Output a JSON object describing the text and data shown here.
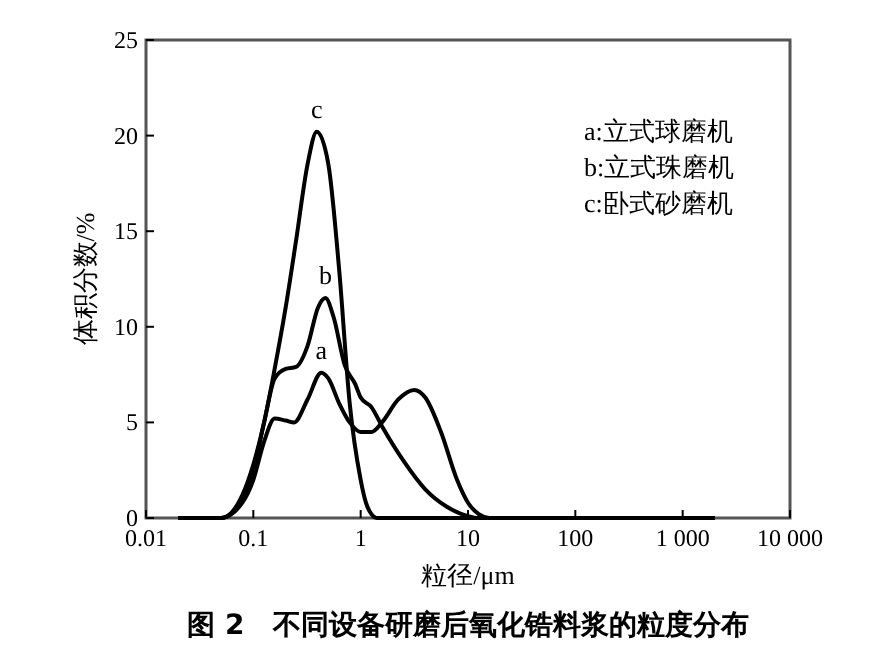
{
  "chart_data": {
    "type": "line",
    "title": "图 2　不同设备研磨后氧化锆料浆的粒度分布",
    "xlabel": "粒径/μm",
    "ylabel": "体积分数/%",
    "log": "x",
    "xlim": [
      0.01,
      10000
    ],
    "ylim": [
      0,
      25
    ],
    "xticks": [
      0.01,
      0.1,
      1,
      10,
      100,
      {
        "value": 1000,
        "label": "1 000"
      },
      {
        "value": 10000,
        "label": "10 000"
      }
    ],
    "yticks": [
      0,
      5,
      10,
      15,
      20,
      25
    ],
    "grid": false,
    "legend": false,
    "marker": "none",
    "line_style": "solid",
    "series": [
      {
        "name": "a",
        "color": "#000000",
        "x": [
          0.02,
          0.05,
          0.079,
          0.1,
          0.126,
          0.158,
          0.2,
          0.24,
          0.32,
          0.43,
          0.5,
          0.63,
          0.79,
          1,
          1.26,
          1.58,
          2.24,
          3.16,
          4,
          5.6,
          7.9,
          10,
          12.6,
          15.8,
          20,
          2000
        ],
        "values": [
          0,
          0,
          0.8,
          2,
          4,
          5.2,
          5.1,
          5,
          6.2,
          7.6,
          7.3,
          6,
          5,
          4.5,
          4.5,
          5,
          6.2,
          6.7,
          6.3,
          4.5,
          2,
          0.8,
          0.2,
          0,
          0,
          0
        ]
      },
      {
        "name": "b",
        "color": "#000000",
        "x": [
          0.02,
          0.05,
          0.079,
          0.1,
          0.126,
          0.158,
          0.2,
          0.25,
          0.32,
          0.4,
          0.47,
          0.56,
          0.71,
          0.89,
          1,
          1.26,
          1.58,
          2.5,
          4,
          6.3,
          10,
          12.6,
          20,
          2000
        ],
        "values": [
          0,
          0,
          1,
          2.5,
          5,
          7.3,
          7.8,
          7.9,
          9,
          11,
          11.5,
          10.5,
          8,
          7,
          6.3,
          5.8,
          4.8,
          3,
          1.5,
          0.6,
          0.1,
          0,
          0,
          0
        ]
      },
      {
        "name": "c",
        "color": "#000000",
        "x": [
          0.02,
          0.05,
          0.063,
          0.079,
          0.1,
          0.126,
          0.158,
          0.2,
          0.25,
          0.32,
          0.39,
          0.5,
          0.63,
          0.79,
          1,
          1.12,
          1.26,
          1.41,
          2000
        ],
        "values": [
          0,
          0,
          0.3,
          1.2,
          2.8,
          5,
          7.8,
          11,
          14.5,
          18.5,
          20.2,
          18.5,
          13,
          6,
          2,
          0.8,
          0.2,
          0,
          0
        ]
      }
    ],
    "annotations": [
      "a:立式球磨机",
      "b:立式珠磨机",
      "c:卧式砂磨机"
    ]
  }
}
